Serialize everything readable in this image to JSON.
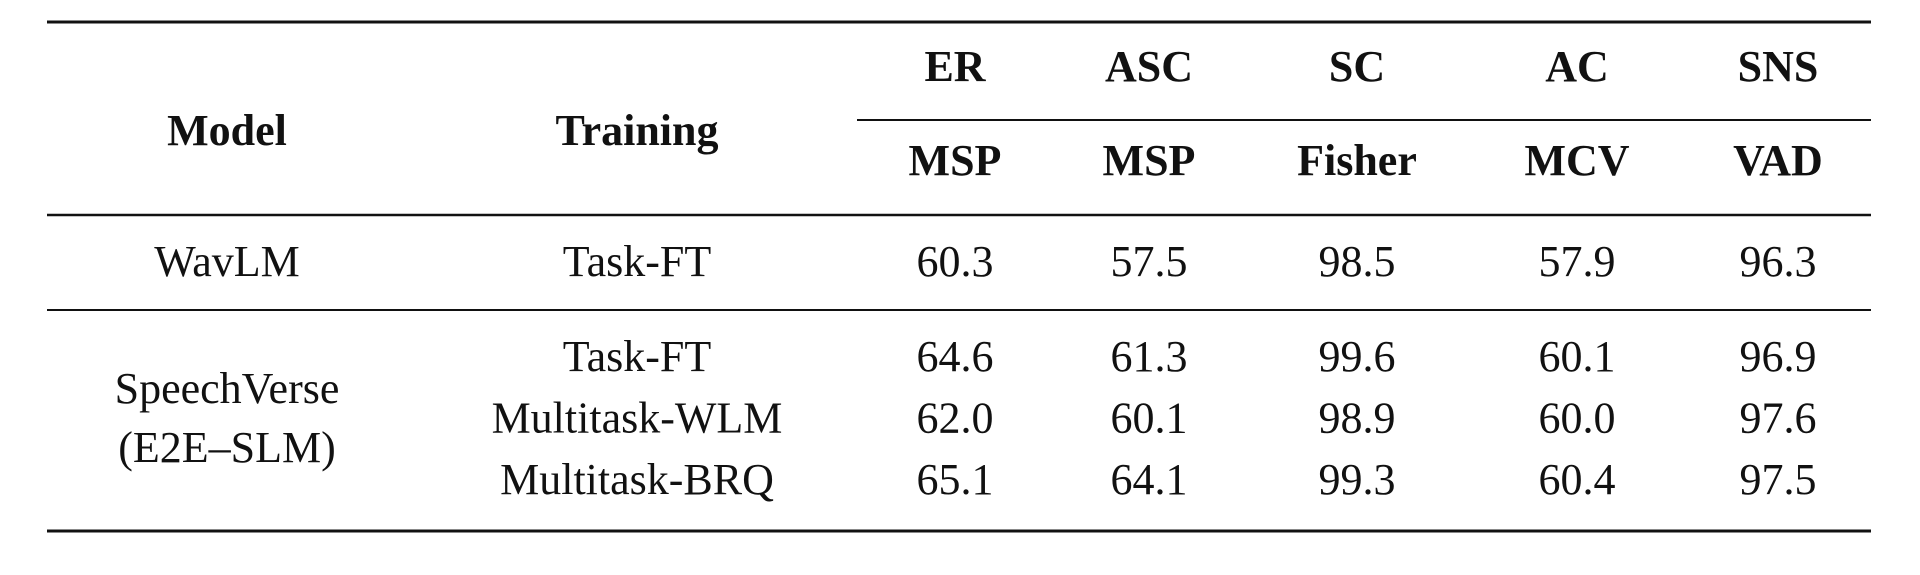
{
  "table": {
    "header": {
      "model": "Model",
      "training": "Training",
      "tasks": [
        "ER",
        "ASC",
        "SC",
        "AC",
        "SNS"
      ],
      "datasets": [
        "MSP",
        "MSP",
        "Fisher",
        "MCV",
        "VAD"
      ]
    },
    "groups": [
      {
        "model": [
          "WavLM"
        ],
        "rows": [
          {
            "training": "Task-FT",
            "values": [
              "60.3",
              "57.5",
              "98.5",
              "57.9",
              "96.3"
            ]
          }
        ]
      },
      {
        "model": [
          "SpeechVerse",
          "(E2E–SLM)"
        ],
        "rows": [
          {
            "training": "Task-FT",
            "values": [
              "64.6",
              "61.3",
              "99.6",
              "60.1",
              "96.9"
            ]
          },
          {
            "training": "Multitask-WLM",
            "values": [
              "62.0",
              "60.1",
              "98.9",
              "60.0",
              "97.6"
            ]
          },
          {
            "training": "Multitask-BRQ",
            "values": [
              "65.1",
              "64.1",
              "99.3",
              "60.4",
              "97.5"
            ]
          }
        ]
      }
    ]
  }
}
